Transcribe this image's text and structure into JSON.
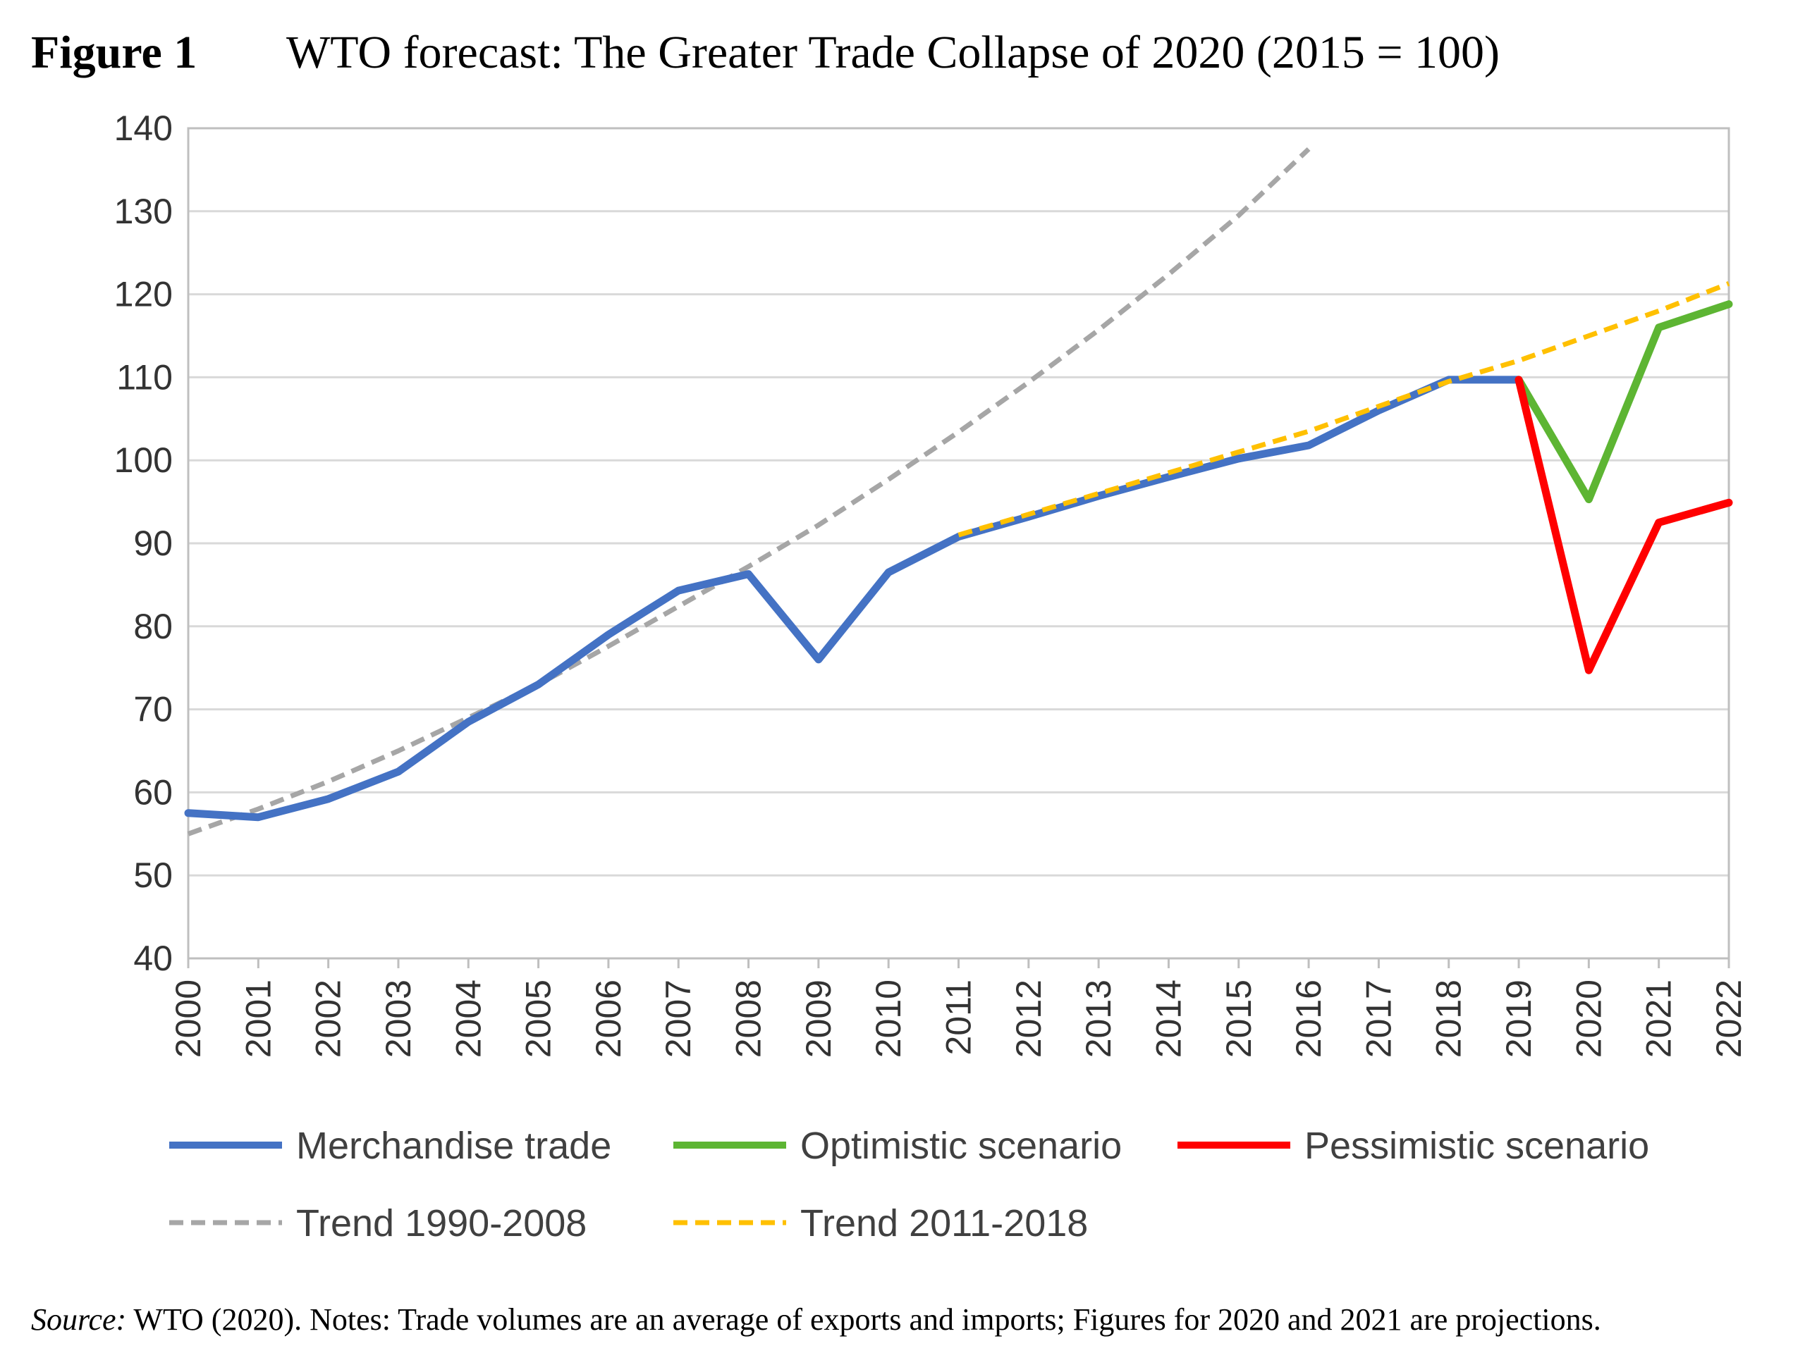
{
  "figure": {
    "label": "Figure 1",
    "title": "WTO forecast: The Greater Trade Collapse of 2020 (2015 = 100)",
    "source_label": "Source:",
    "source_text": " WTO (2020). Notes: Trade volumes are an average of exports and imports; Figures for 2020 and 2021 are projections."
  },
  "chart_data": {
    "type": "line",
    "title": "WTO forecast: The Greater Trade Collapse of 2020 (2015 = 100)",
    "x": [
      2000,
      2001,
      2002,
      2003,
      2004,
      2005,
      2006,
      2007,
      2008,
      2009,
      2010,
      2011,
      2012,
      2013,
      2014,
      2015,
      2016,
      2017,
      2018,
      2019,
      2020,
      2021,
      2022
    ],
    "x_tick_labels": [
      "2000",
      "2001",
      "2002",
      "2003",
      "2004",
      "2005",
      "2006",
      "2007",
      "2008",
      "2009",
      "2010",
      "2011",
      "2012",
      "2013",
      "2014",
      "2015",
      "2016",
      "2017",
      "2018",
      "2019",
      "2020",
      "2021",
      "2022"
    ],
    "y_ticks": [
      40,
      50,
      60,
      70,
      80,
      90,
      100,
      110,
      120,
      130,
      140
    ],
    "ylim": [
      40,
      140
    ],
    "xlim": [
      2000,
      2022
    ],
    "grid": "horizontal",
    "legend_position": "bottom",
    "series": [
      {
        "name": "Merchandise trade",
        "color": "#4472C4",
        "style": "solid",
        "x": [
          2000,
          2001,
          2002,
          2003,
          2004,
          2005,
          2006,
          2007,
          2008,
          2009,
          2010,
          2011,
          2012,
          2013,
          2014,
          2015,
          2016,
          2017,
          2018,
          2019
        ],
        "y": [
          57.5,
          57,
          59.2,
          62.5,
          68.5,
          73,
          79,
          84.3,
          86.3,
          76,
          86.5,
          90.8,
          93.2,
          95.7,
          98,
          100.2,
          101.8,
          106,
          109.7,
          109.7
        ]
      },
      {
        "name": "Optimistic scenario",
        "color": "#5DB533",
        "style": "solid",
        "x": [
          2019,
          2020,
          2021,
          2022
        ],
        "y": [
          109.7,
          95.3,
          116,
          118.8
        ]
      },
      {
        "name": "Pessimistic scenario",
        "color": "#FF0000",
        "style": "solid",
        "x": [
          2019,
          2020,
          2021,
          2022
        ],
        "y": [
          109.7,
          74.7,
          92.5,
          94.9
        ]
      },
      {
        "name": "Trend 1990-2008",
        "color": "#A6A6A6",
        "style": "dashed",
        "x": [
          2000,
          2001,
          2002,
          2003,
          2004,
          2005,
          2006,
          2007,
          2008,
          2009,
          2010,
          2011,
          2012,
          2013,
          2014,
          2015,
          2016
        ],
        "y": [
          55,
          58,
          61.3,
          65,
          69,
          73,
          77.6,
          82.4,
          87.2,
          92.2,
          97.7,
          103.4,
          109.4,
          115.7,
          122.4,
          129.5,
          137.5
        ]
      },
      {
        "name": "Trend 2011-2018",
        "color": "#FFC000",
        "style": "dashed",
        "x": [
          2011,
          2012,
          2013,
          2014,
          2015,
          2016,
          2017,
          2018,
          2019,
          2020,
          2021,
          2022
        ],
        "y": [
          91,
          93.5,
          96,
          98.5,
          101,
          103.5,
          106.5,
          109.5,
          112,
          115,
          118,
          121.3
        ]
      }
    ]
  }
}
